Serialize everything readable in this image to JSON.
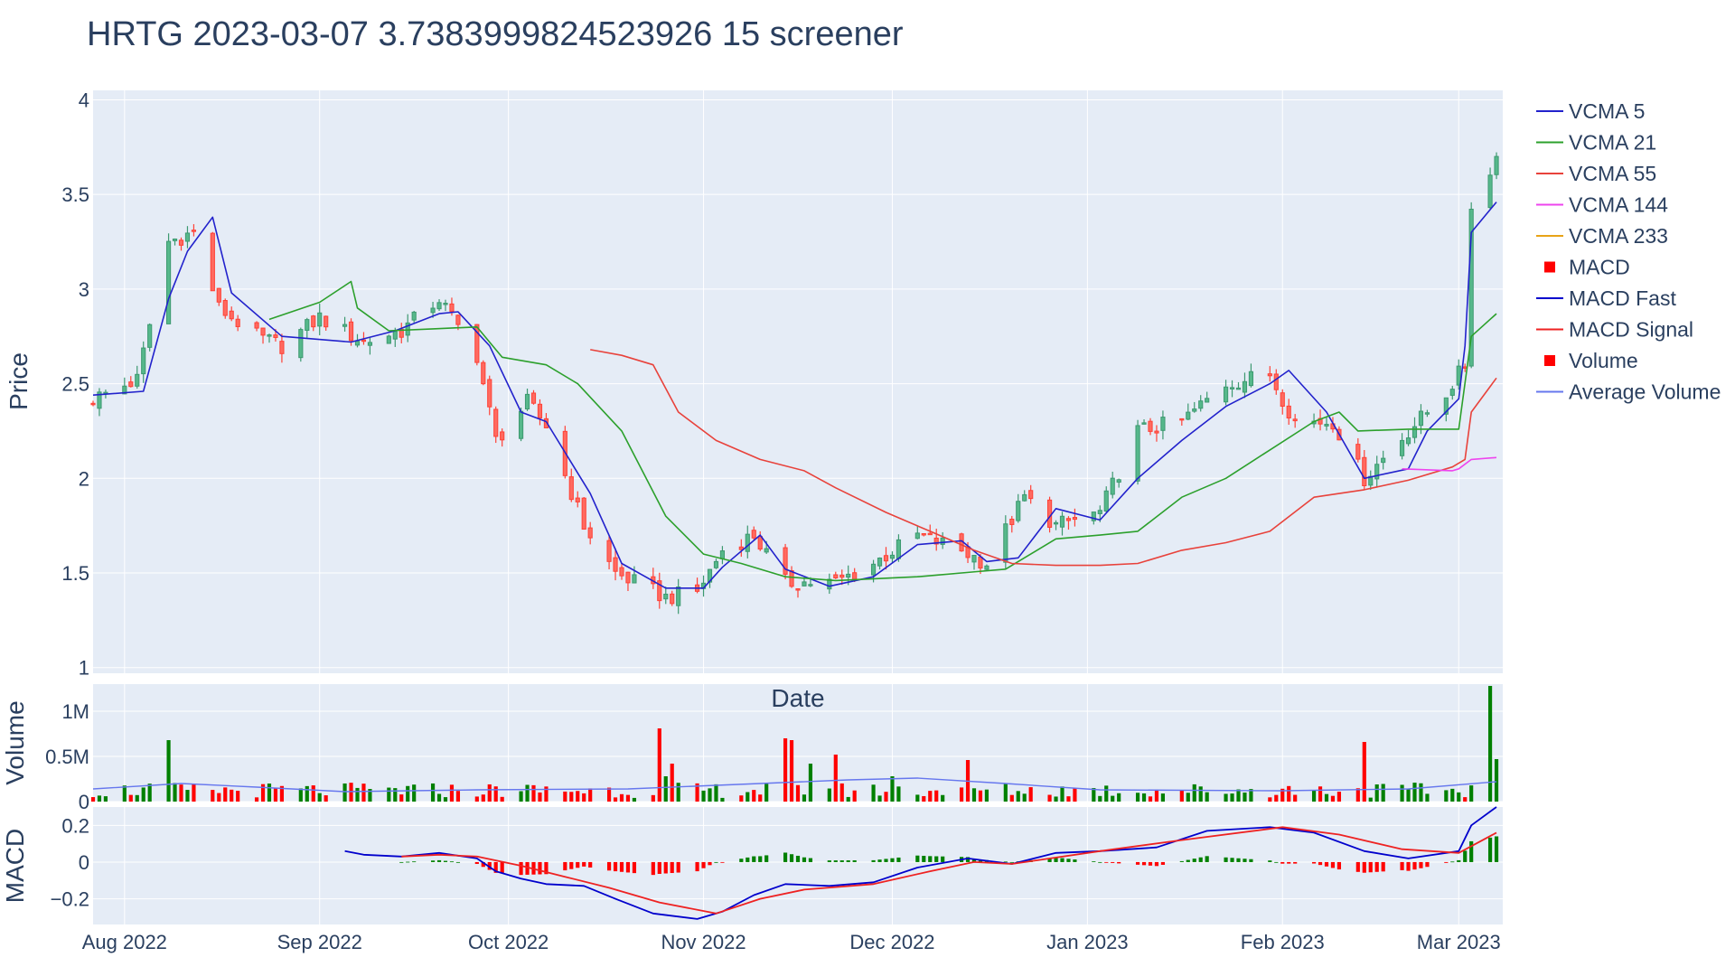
{
  "title": "HRTG 2023-03-07 3.7383999824523926 15 screener",
  "axes": {
    "price_title": "Price",
    "volume_title": "Volume",
    "macd_title": "MACD",
    "date_title": "Date"
  },
  "x_ticks": [
    "Aug 2022",
    "Sep 2022",
    "Oct 2022",
    "Nov 2022",
    "Dec 2022",
    "Jan 2023",
    "Feb 2023",
    "Mar 2023"
  ],
  "price_ticks": [
    "1",
    "1.5",
    "2",
    "2.5",
    "3",
    "3.5",
    "4"
  ],
  "volume_ticks": [
    "0",
    "0.5M",
    "1M"
  ],
  "macd_ticks": [
    "−0.2",
    "0",
    "0.2"
  ],
  "legend": [
    "VCMA 5",
    "VCMA 21",
    "VCMA 55",
    "VCMA 144",
    "VCMA 233",
    "MACD",
    "MACD Fast",
    "MACD Signal",
    "Volume",
    "Average Volume"
  ],
  "colors": {
    "plot_bg": "#e5ecf6",
    "grid": "#ffffff",
    "up": "#3d9970",
    "down": "#ff4136",
    "vcma5": "#2222cc",
    "vcma21": "#2ca02c",
    "vcma55": "#e8423b",
    "vcma144": "#ee44ee",
    "vcma233": "#e8a317",
    "macd_fast": "#0000cc",
    "macd_signal": "#ee2222",
    "hist_pos": "#008000",
    "hist_neg": "#ff0000",
    "avg_volume": "#6677ee"
  },
  "chart_data": {
    "type": "candlestick",
    "x_range": [
      "2022-07-27",
      "2023-03-08"
    ],
    "price_ylim": [
      0.97,
      4.05
    ],
    "volume_ylim": [
      0,
      1300000
    ],
    "macd_ylim": [
      -0.34,
      0.3
    ],
    "grid": true,
    "legend_position": "right",
    "price_anchors": [
      [
        "2022-07-27",
        2.42
      ],
      [
        "2022-08-03",
        2.52
      ],
      [
        "2022-08-08",
        3.25
      ],
      [
        "2022-08-12",
        3.3
      ],
      [
        "2022-08-16",
        2.9
      ],
      [
        "2022-08-22",
        2.75
      ],
      [
        "2022-08-26",
        2.7
      ],
      [
        "2022-09-01",
        2.85
      ],
      [
        "2022-09-08",
        2.72
      ],
      [
        "2022-09-14",
        2.78
      ],
      [
        "2022-09-20",
        2.95
      ],
      [
        "2022-09-26",
        2.65
      ],
      [
        "2022-09-29",
        2.2
      ],
      [
        "2022-10-04",
        2.4
      ],
      [
        "2022-10-07",
        2.28
      ],
      [
        "2022-10-13",
        1.75
      ],
      [
        "2022-10-18",
        1.5
      ],
      [
        "2022-10-26",
        1.37
      ],
      [
        "2022-10-31",
        1.4
      ],
      [
        "2022-11-04",
        1.62
      ],
      [
        "2022-11-09",
        1.7
      ],
      [
        "2022-11-14",
        1.45
      ],
      [
        "2022-11-22",
        1.45
      ],
      [
        "2022-11-28",
        1.55
      ],
      [
        "2022-12-05",
        1.7
      ],
      [
        "2022-12-12",
        1.62
      ],
      [
        "2022-12-16",
        1.55
      ],
      [
        "2022-12-22",
        1.9
      ],
      [
        "2022-12-27",
        1.75
      ],
      [
        "2023-01-03",
        1.82
      ],
      [
        "2023-01-09",
        2.25
      ],
      [
        "2023-01-16",
        2.3
      ],
      [
        "2023-01-23",
        2.5
      ],
      [
        "2023-01-30",
        2.55
      ],
      [
        "2023-02-03",
        2.3
      ],
      [
        "2023-02-09",
        2.3
      ],
      [
        "2023-02-14",
        2.0
      ],
      [
        "2023-02-21",
        2.25
      ],
      [
        "2023-02-27",
        2.45
      ],
      [
        "2023-03-02",
        2.6
      ],
      [
        "2023-03-03",
        3.45
      ],
      [
        "2023-03-06",
        3.6
      ],
      [
        "2023-03-07",
        3.74
      ]
    ],
    "vcma5": [
      [
        "2022-07-27",
        2.44
      ],
      [
        "2022-08-04",
        2.46
      ],
      [
        "2022-08-08",
        2.95
      ],
      [
        "2022-08-11",
        3.2
      ],
      [
        "2022-08-15",
        3.38
      ],
      [
        "2022-08-18",
        2.98
      ],
      [
        "2022-08-26",
        2.75
      ],
      [
        "2022-09-06",
        2.72
      ],
      [
        "2022-09-13",
        2.78
      ],
      [
        "2022-09-20",
        2.87
      ],
      [
        "2022-09-23",
        2.88
      ],
      [
        "2022-09-28",
        2.7
      ],
      [
        "2022-10-03",
        2.35
      ],
      [
        "2022-10-07",
        2.3
      ],
      [
        "2022-10-14",
        1.92
      ],
      [
        "2022-10-19",
        1.55
      ],
      [
        "2022-10-26",
        1.42
      ],
      [
        "2022-11-01",
        1.42
      ],
      [
        "2022-11-04",
        1.53
      ],
      [
        "2022-11-10",
        1.7
      ],
      [
        "2022-11-14",
        1.52
      ],
      [
        "2022-11-21",
        1.43
      ],
      [
        "2022-11-28",
        1.48
      ],
      [
        "2022-12-05",
        1.65
      ],
      [
        "2022-12-12",
        1.67
      ],
      [
        "2022-12-16",
        1.56
      ],
      [
        "2022-12-21",
        1.58
      ],
      [
        "2022-12-27",
        1.84
      ],
      [
        "2023-01-03",
        1.78
      ],
      [
        "2023-01-09",
        2.0
      ],
      [
        "2023-01-16",
        2.2
      ],
      [
        "2023-01-23",
        2.38
      ],
      [
        "2023-01-30",
        2.5
      ],
      [
        "2023-02-02",
        2.57
      ],
      [
        "2023-02-08",
        2.35
      ],
      [
        "2023-02-14",
        2.0
      ],
      [
        "2023-02-21",
        2.05
      ],
      [
        "2023-02-24",
        2.25
      ],
      [
        "2023-03-01",
        2.42
      ],
      [
        "2023-03-02",
        2.7
      ],
      [
        "2023-03-03",
        3.3
      ],
      [
        "2023-03-07",
        3.46
      ]
    ],
    "vcma21": [
      [
        "2022-08-24",
        2.84
      ],
      [
        "2022-09-01",
        2.93
      ],
      [
        "2022-09-06",
        3.04
      ],
      [
        "2022-09-07",
        2.9
      ],
      [
        "2022-09-12",
        2.78
      ],
      [
        "2022-09-19",
        2.79
      ],
      [
        "2022-09-26",
        2.8
      ],
      [
        "2022-09-30",
        2.64
      ],
      [
        "2022-10-07",
        2.6
      ],
      [
        "2022-10-12",
        2.5
      ],
      [
        "2022-10-19",
        2.25
      ],
      [
        "2022-10-26",
        1.8
      ],
      [
        "2022-11-01",
        1.6
      ],
      [
        "2022-11-07",
        1.55
      ],
      [
        "2022-11-14",
        1.48
      ],
      [
        "2022-11-22",
        1.46
      ],
      [
        "2022-12-05",
        1.48
      ],
      [
        "2022-12-12",
        1.5
      ],
      [
        "2022-12-19",
        1.52
      ],
      [
        "2022-12-27",
        1.68
      ],
      [
        "2023-01-03",
        1.7
      ],
      [
        "2023-01-09",
        1.72
      ],
      [
        "2023-01-16",
        1.9
      ],
      [
        "2023-01-23",
        2.0
      ],
      [
        "2023-01-30",
        2.15
      ],
      [
        "2023-02-06",
        2.3
      ],
      [
        "2023-02-10",
        2.35
      ],
      [
        "2023-02-13",
        2.25
      ],
      [
        "2023-02-21",
        2.26
      ],
      [
        "2023-03-01",
        2.26
      ],
      [
        "2023-03-03",
        2.75
      ],
      [
        "2023-03-07",
        2.87
      ]
    ],
    "vcma55": [
      [
        "2022-10-14",
        2.68
      ],
      [
        "2022-10-19",
        2.65
      ],
      [
        "2022-10-24",
        2.6
      ],
      [
        "2022-10-28",
        2.35
      ],
      [
        "2022-11-03",
        2.2
      ],
      [
        "2022-11-10",
        2.1
      ],
      [
        "2022-11-17",
        2.04
      ],
      [
        "2022-11-22",
        1.95
      ],
      [
        "2022-11-30",
        1.82
      ],
      [
        "2022-12-07",
        1.72
      ],
      [
        "2022-12-14",
        1.62
      ],
      [
        "2022-12-20",
        1.55
      ],
      [
        "2022-12-27",
        1.54
      ],
      [
        "2023-01-03",
        1.54
      ],
      [
        "2023-01-09",
        1.55
      ],
      [
        "2023-01-16",
        1.62
      ],
      [
        "2023-01-23",
        1.66
      ],
      [
        "2023-01-30",
        1.72
      ],
      [
        "2023-02-06",
        1.9
      ],
      [
        "2023-02-14",
        1.94
      ],
      [
        "2023-02-21",
        1.99
      ],
      [
        "2023-02-28",
        2.06
      ],
      [
        "2023-03-02",
        2.1
      ],
      [
        "2023-03-03",
        2.35
      ],
      [
        "2023-03-07",
        2.53
      ]
    ],
    "vcma144": [
      [
        "2023-02-20",
        2.05
      ],
      [
        "2023-02-28",
        2.04
      ],
      [
        "2023-03-01",
        2.05
      ],
      [
        "2023-03-03",
        2.1
      ],
      [
        "2023-03-07",
        2.11
      ]
    ],
    "vcma233": [],
    "volume_spikes": [
      [
        "2022-08-08",
        680000
      ],
      [
        "2022-10-25",
        810000
      ],
      [
        "2022-10-26",
        280000
      ],
      [
        "2022-10-27",
        420000
      ],
      [
        "2022-11-14",
        700000
      ],
      [
        "2022-11-15",
        680000
      ],
      [
        "2022-11-18",
        420000
      ],
      [
        "2022-11-22",
        520000
      ],
      [
        "2022-12-01",
        280000
      ],
      [
        "2022-12-13",
        460000
      ],
      [
        "2023-02-14",
        660000
      ],
      [
        "2023-03-06",
        1280000
      ],
      [
        "2023-03-07",
        470000
      ]
    ],
    "avg_volume": [
      [
        "2022-07-27",
        140000
      ],
      [
        "2022-08-10",
        200000
      ],
      [
        "2022-08-22",
        160000
      ],
      [
        "2022-09-05",
        110000
      ],
      [
        "2022-09-26",
        130000
      ],
      [
        "2022-10-20",
        140000
      ],
      [
        "2022-11-03",
        180000
      ],
      [
        "2022-11-24",
        240000
      ],
      [
        "2022-12-05",
        260000
      ],
      [
        "2022-12-19",
        200000
      ],
      [
        "2023-01-03",
        130000
      ],
      [
        "2023-02-01",
        120000
      ],
      [
        "2023-02-21",
        140000
      ],
      [
        "2023-03-07",
        220000
      ]
    ],
    "macd_fast": [
      [
        "2022-09-05",
        0.06
      ],
      [
        "2022-09-08",
        0.04
      ],
      [
        "2022-09-14",
        0.03
      ],
      [
        "2022-09-20",
        0.05
      ],
      [
        "2022-09-26",
        0.02
      ],
      [
        "2022-09-29",
        -0.05
      ],
      [
        "2022-10-03",
        -0.09
      ],
      [
        "2022-10-07",
        -0.12
      ],
      [
        "2022-10-13",
        -0.13
      ],
      [
        "2022-10-18",
        -0.2
      ],
      [
        "2022-10-24",
        -0.28
      ],
      [
        "2022-10-31",
        -0.31
      ],
      [
        "2022-11-04",
        -0.27
      ],
      [
        "2022-11-09",
        -0.18
      ],
      [
        "2022-11-14",
        -0.12
      ],
      [
        "2022-11-21",
        -0.13
      ],
      [
        "2022-11-28",
        -0.11
      ],
      [
        "2022-12-05",
        -0.03
      ],
      [
        "2022-12-13",
        0.02
      ],
      [
        "2022-12-20",
        -0.01
      ],
      [
        "2022-12-27",
        0.05
      ],
      [
        "2023-01-03",
        0.06
      ],
      [
        "2023-01-12",
        0.08
      ],
      [
        "2023-01-20",
        0.17
      ],
      [
        "2023-01-30",
        0.19
      ],
      [
        "2023-02-06",
        0.16
      ],
      [
        "2023-02-14",
        0.06
      ],
      [
        "2023-02-21",
        0.02
      ],
      [
        "2023-03-01",
        0.06
      ],
      [
        "2023-03-03",
        0.2
      ],
      [
        "2023-03-07",
        0.3
      ]
    ],
    "macd_signal": [
      [
        "2022-09-14",
        0.03
      ],
      [
        "2022-09-20",
        0.04
      ],
      [
        "2022-09-26",
        0.03
      ],
      [
        "2022-10-03",
        -0.02
      ],
      [
        "2022-10-10",
        -0.08
      ],
      [
        "2022-10-17",
        -0.14
      ],
      [
        "2022-10-25",
        -0.22
      ],
      [
        "2022-11-03",
        -0.28
      ],
      [
        "2022-11-10",
        -0.2
      ],
      [
        "2022-11-17",
        -0.15
      ],
      [
        "2022-11-28",
        -0.12
      ],
      [
        "2022-12-07",
        -0.05
      ],
      [
        "2022-12-14",
        0.0
      ],
      [
        "2022-12-20",
        -0.01
      ],
      [
        "2023-01-03",
        0.06
      ],
      [
        "2023-01-16",
        0.12
      ],
      [
        "2023-02-01",
        0.19
      ],
      [
        "2023-02-10",
        0.15
      ],
      [
        "2023-02-20",
        0.07
      ],
      [
        "2023-03-01",
        0.05
      ],
      [
        "2023-03-07",
        0.16
      ]
    ]
  }
}
